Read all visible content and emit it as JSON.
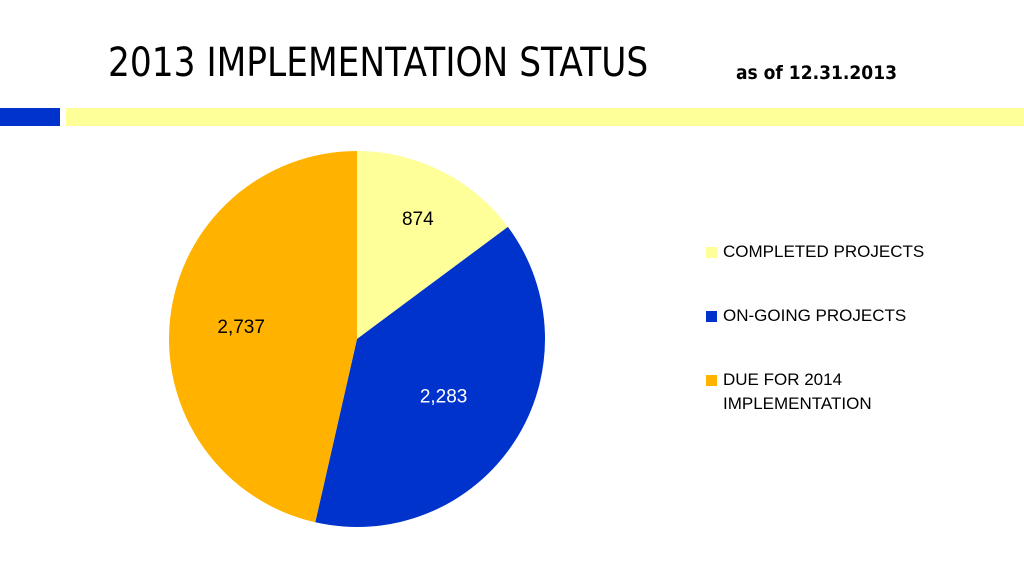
{
  "slide": {
    "title": "2013 IMPLEMENTATION STATUS",
    "subtitle": "as of 12.31.2013",
    "band_colors": {
      "blue": "#0033cc",
      "yellow": "#ffff99"
    }
  },
  "chart_data": {
    "type": "pie",
    "title": "",
    "categories": [
      "COMPLETED PROJECTS",
      "ON-GOING PROJECTS",
      "DUE FOR 2014 IMPLEMENTATION"
    ],
    "values": [
      874,
      2283,
      2737
    ],
    "labels": [
      "874",
      "2,283",
      "2,737"
    ],
    "colors": [
      "#ffff99",
      "#0033cc",
      "#ffb300"
    ],
    "label_colors": [
      "#000000",
      "#ffffff",
      "#000000"
    ],
    "start": "12 o'clock",
    "direction": "clockwise",
    "legend_position": "right"
  }
}
